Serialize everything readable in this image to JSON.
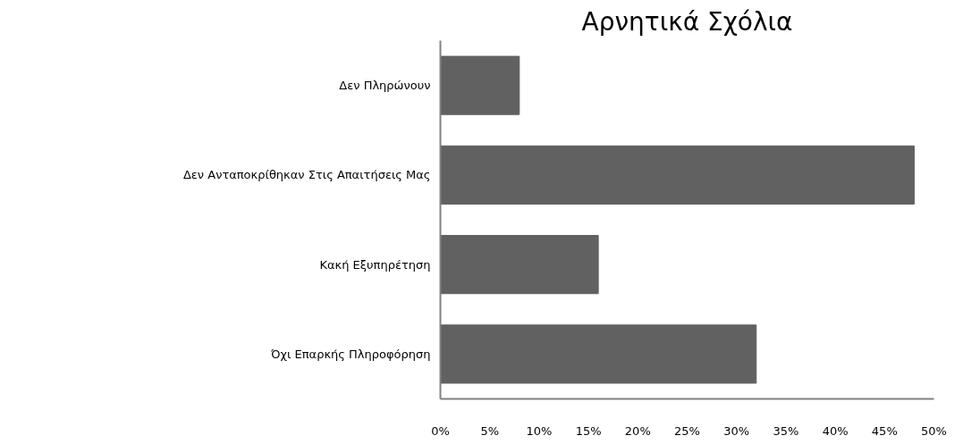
{
  "chart_data": {
    "type": "bar",
    "orientation": "horizontal",
    "title": "Αρνητικά Σχόλια",
    "categories": [
      "Δεν Πληρώνουν",
      "Δεν Ανταποκρίθηκαν Στις Απαιτήσεις Μας",
      "Κακή Εξυπηρέτηση",
      "Όχι Επαρκής Πληροφόρηση"
    ],
    "values": [
      8,
      48,
      16,
      32
    ],
    "color": "#616161",
    "xlim": [
      0,
      50
    ],
    "xticks": [
      {
        "value": 0,
        "label": "0%"
      },
      {
        "value": 5,
        "label": "5%"
      },
      {
        "value": 10,
        "label": "10%"
      },
      {
        "value": 15,
        "label": "15%"
      },
      {
        "value": 20,
        "label": "20%"
      },
      {
        "value": 25,
        "label": "25%"
      },
      {
        "value": 30,
        "label": "30%"
      },
      {
        "value": 35,
        "label": "35%"
      },
      {
        "value": 40,
        "label": "40%"
      },
      {
        "value": 45,
        "label": "45%"
      },
      {
        "value": 50,
        "label": "50%"
      }
    ],
    "grid": false
  }
}
